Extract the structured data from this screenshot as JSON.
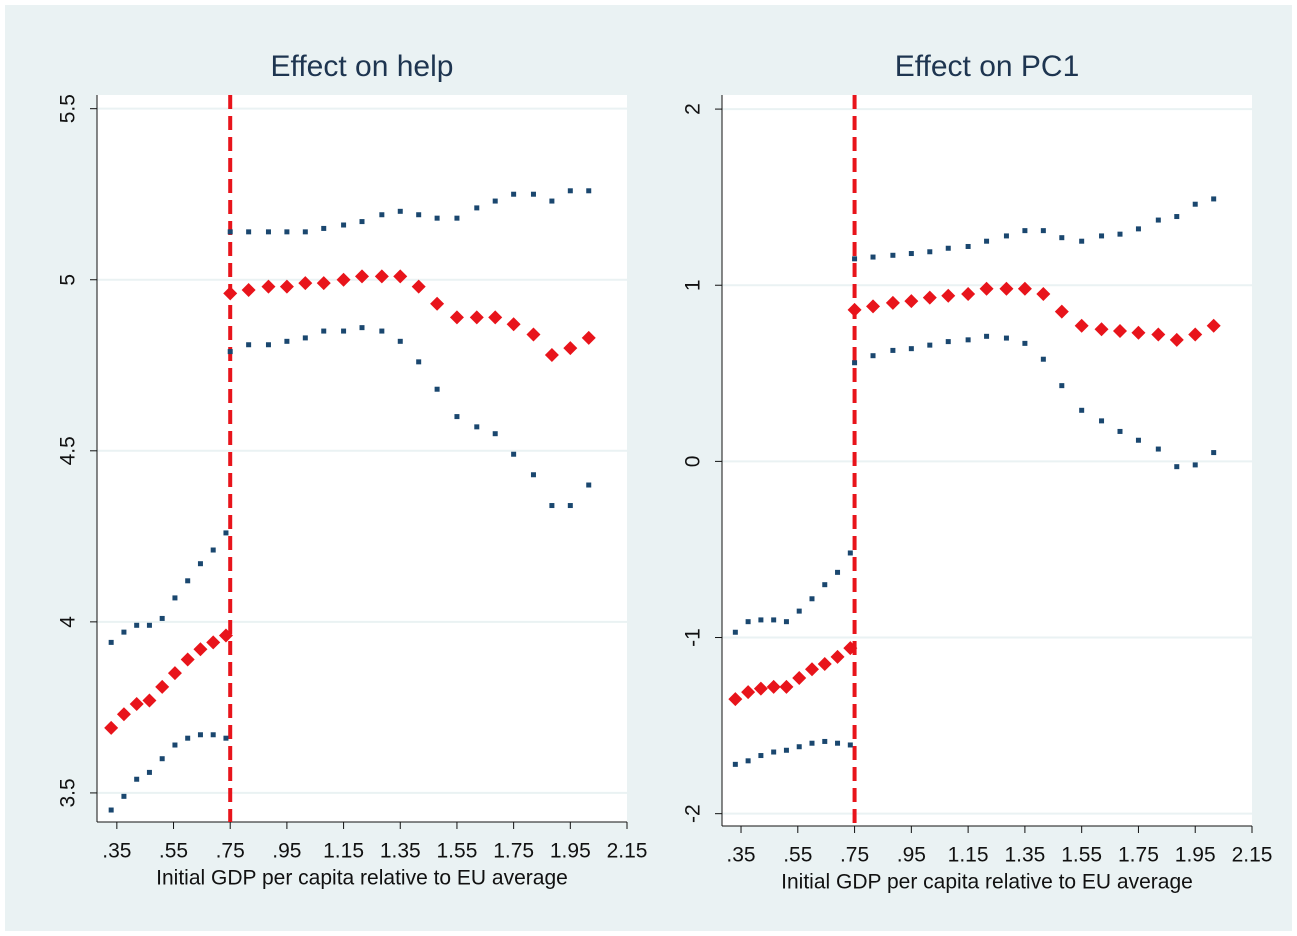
{
  "chart_data": [
    {
      "type": "scatter",
      "title": "Effect on help",
      "x_label": "Initial GDP per capita relative to EU average",
      "x": [
        0.33,
        0.375,
        0.42,
        0.465,
        0.51,
        0.555,
        0.6,
        0.645,
        0.69,
        0.735,
        0.75,
        0.815,
        0.885,
        0.95,
        1.015,
        1.08,
        1.15,
        1.215,
        1.285,
        1.35,
        1.415,
        1.48,
        1.55,
        1.62,
        1.685,
        1.75,
        1.82,
        1.885,
        1.95,
        2.015
      ],
      "xlim": [
        0.28,
        2.15
      ],
      "xticks": [
        {
          "value": 0.35,
          "label": ".35"
        },
        {
          "value": 0.55,
          "label": ".55"
        },
        {
          "value": 0.75,
          "label": ".75"
        },
        {
          "value": 0.95,
          "label": ".95"
        },
        1.15,
        1.35,
        1.55,
        1.75,
        1.95,
        2.15
      ],
      "ylim": [
        3.415,
        5.54
      ],
      "yticks": [
        3.5,
        4,
        4.5,
        5,
        5.5
      ],
      "grid": true,
      "vline": 0.75,
      "vline_color": "#e8141b",
      "series": [
        {
          "color": "#1a476f",
          "marker": "square",
          "values": [
            3.94,
            3.97,
            3.99,
            3.99,
            4.01,
            4.07,
            4.12,
            4.17,
            4.21,
            4.26,
            5.14,
            5.14,
            5.14,
            5.14,
            5.14,
            5.15,
            5.16,
            5.17,
            5.19,
            5.2,
            5.19,
            5.18,
            5.18,
            5.21,
            5.23,
            5.25,
            5.25,
            5.23,
            5.26,
            5.26
          ]
        },
        {
          "color": "#e8141b",
          "marker": "diamond",
          "values": [
            3.69,
            3.73,
            3.76,
            3.77,
            3.81,
            3.85,
            3.89,
            3.92,
            3.94,
            3.96,
            4.96,
            4.97,
            4.98,
            4.98,
            4.99,
            4.99,
            5.0,
            5.01,
            5.01,
            5.01,
            4.98,
            4.93,
            4.89,
            4.89,
            4.89,
            4.87,
            4.84,
            4.78,
            4.8,
            4.83
          ]
        },
        {
          "color": "#1a476f",
          "marker": "square",
          "values": [
            3.45,
            3.49,
            3.54,
            3.56,
            3.6,
            3.64,
            3.66,
            3.67,
            3.67,
            3.66,
            4.79,
            4.81,
            4.81,
            4.82,
            4.83,
            4.85,
            4.85,
            4.86,
            4.85,
            4.82,
            4.76,
            4.68,
            4.6,
            4.57,
            4.55,
            4.49,
            4.43,
            4.34,
            4.34,
            4.4
          ]
        }
      ]
    },
    {
      "type": "scatter",
      "title": "Effect on PC1",
      "x_label": "Initial GDP per capita relative to EU average",
      "x": [
        0.33,
        0.375,
        0.42,
        0.465,
        0.51,
        0.555,
        0.6,
        0.645,
        0.69,
        0.735,
        0.75,
        0.815,
        0.885,
        0.95,
        1.015,
        1.08,
        1.15,
        1.215,
        1.285,
        1.35,
        1.415,
        1.48,
        1.55,
        1.62,
        1.685,
        1.75,
        1.82,
        1.885,
        1.95,
        2.015
      ],
      "xlim": [
        0.283,
        2.15
      ],
      "xticks": [
        {
          "value": 0.35,
          "label": ".35"
        },
        {
          "value": 0.55,
          "label": ".55"
        },
        {
          "value": 0.75,
          "label": ".75"
        },
        {
          "value": 0.95,
          "label": ".95"
        },
        1.15,
        1.35,
        1.55,
        1.75,
        1.95,
        2.15
      ],
      "ylim": [
        -2.07,
        2.08
      ],
      "yticks": [
        -2,
        -1,
        0,
        1,
        2
      ],
      "grid": true,
      "vline": 0.75,
      "vline_color": "#e8141b",
      "series": [
        {
          "color": "#1a476f",
          "marker": "square",
          "values": [
            -0.97,
            -0.91,
            -0.9,
            -0.9,
            -0.91,
            -0.85,
            -0.78,
            -0.7,
            -0.63,
            -0.52,
            1.15,
            1.16,
            1.17,
            1.18,
            1.19,
            1.21,
            1.22,
            1.25,
            1.28,
            1.31,
            1.31,
            1.27,
            1.25,
            1.28,
            1.29,
            1.32,
            1.37,
            1.39,
            1.46,
            1.49
          ]
        },
        {
          "color": "#e8141b",
          "marker": "diamond",
          "values": [
            -1.35,
            -1.31,
            -1.29,
            -1.28,
            -1.28,
            -1.23,
            -1.18,
            -1.15,
            -1.11,
            -1.06,
            0.86,
            0.88,
            0.9,
            0.91,
            0.93,
            0.94,
            0.95,
            0.98,
            0.98,
            0.98,
            0.95,
            0.85,
            0.77,
            0.75,
            0.74,
            0.73,
            0.72,
            0.69,
            0.72,
            0.77
          ]
        },
        {
          "color": "#1a476f",
          "marker": "square",
          "values": [
            -1.72,
            -1.7,
            -1.67,
            -1.65,
            -1.64,
            -1.62,
            -1.6,
            -1.59,
            -1.6,
            -1.61,
            0.56,
            0.6,
            0.63,
            0.64,
            0.66,
            0.68,
            0.69,
            0.71,
            0.7,
            0.67,
            0.58,
            0.43,
            0.29,
            0.23,
            0.17,
            0.12,
            0.07,
            -0.03,
            -0.02,
            0.05
          ]
        }
      ]
    }
  ]
}
